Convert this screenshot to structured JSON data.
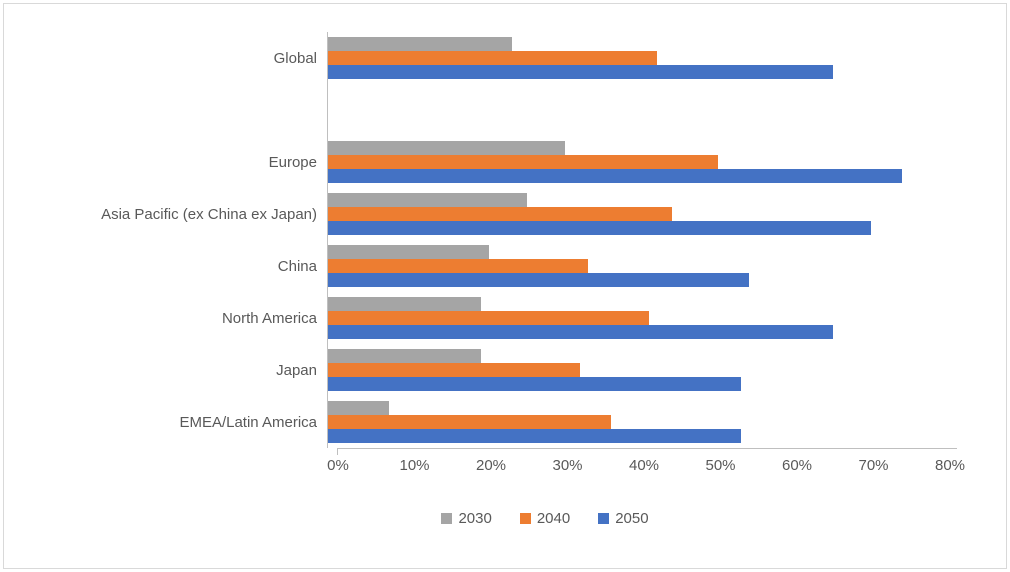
{
  "chart_data": {
    "type": "bar",
    "orientation": "horizontal",
    "title": "",
    "xlabel": "",
    "ylabel": "",
    "xlim": [
      0,
      80
    ],
    "x_tick_labels": [
      "0%",
      "10%",
      "20%",
      "30%",
      "40%",
      "50%",
      "60%",
      "70%",
      "80%"
    ],
    "grid": false,
    "legend_position": "bottom",
    "categories": [
      "Global",
      "",
      "Europe",
      "Asia Pacific (ex China ex Japan)",
      "China",
      "North America",
      "Japan",
      "EMEA/Latin America"
    ],
    "series": [
      {
        "name": "2030",
        "color": "#A5A5A5",
        "values": [
          24,
          null,
          31,
          26,
          21,
          20,
          20,
          8
        ]
      },
      {
        "name": "2040",
        "color": "#ED7D31",
        "values": [
          43,
          null,
          51,
          45,
          34,
          42,
          33,
          37
        ]
      },
      {
        "name": "2050",
        "color": "#4472C4",
        "values": [
          66,
          null,
          75,
          71,
          55,
          66,
          54,
          54
        ]
      }
    ],
    "colors": {
      "axis_line": "#BFBFBF",
      "text": "#595959",
      "background": "#FFFFFF",
      "frame_border": "#D9D9D9"
    }
  }
}
